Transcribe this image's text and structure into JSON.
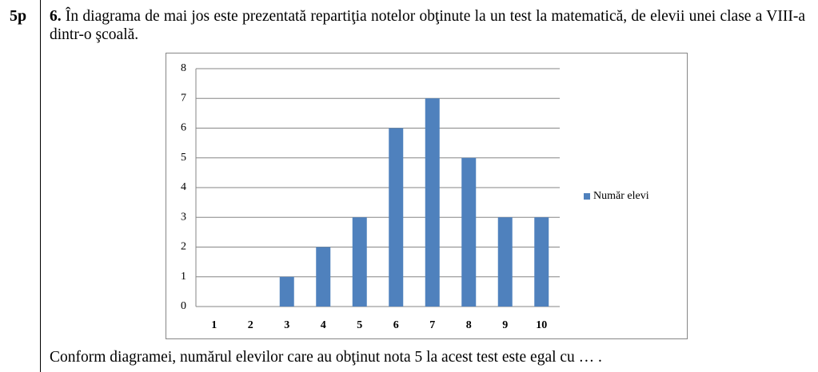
{
  "points": "5p",
  "question": {
    "number": "6.",
    "text": "În diagrama de mai jos este prezentată repartiţia notelor obţinute la un test la matematică, de elevii unei clase a VIII-a dintr-o şcoală."
  },
  "chart_data": {
    "type": "bar",
    "categories": [
      "1",
      "2",
      "3",
      "4",
      "5",
      "6",
      "7",
      "8",
      "9",
      "10"
    ],
    "series": [
      {
        "name": "Număr elevi",
        "color": "#4f81bd",
        "values": [
          0,
          0,
          1,
          2,
          3,
          6,
          7,
          5,
          3,
          3
        ]
      }
    ],
    "ylim": [
      0,
      8
    ],
    "yticks": [
      0,
      1,
      2,
      3,
      4,
      5,
      6,
      7,
      8
    ],
    "grid": true,
    "legend": "right"
  },
  "footer": "Conform diagramei, numărul elevilor care au obţinut nota 5 la acest test este egal cu … ."
}
